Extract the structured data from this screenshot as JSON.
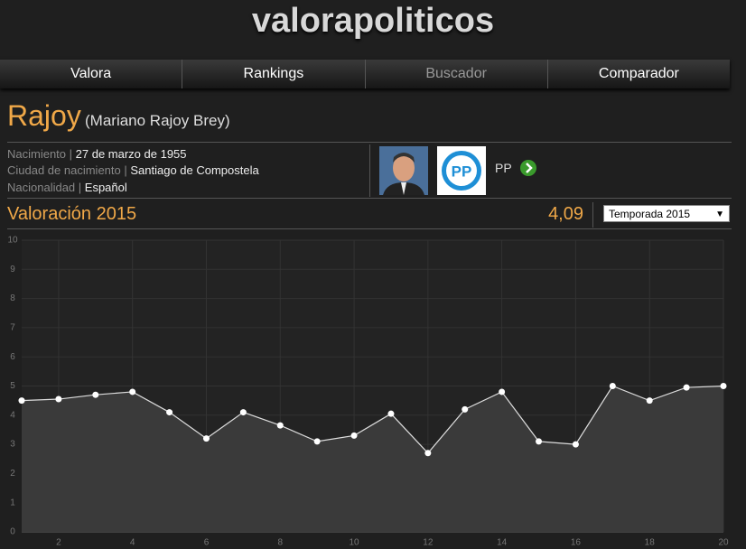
{
  "header": {
    "logo": "valorapoliticos"
  },
  "nav": {
    "items": [
      "Valora",
      "Rankings",
      "Buscador",
      "Comparador"
    ]
  },
  "profile": {
    "name": "Rajoy",
    "full_name": "(Mariano Rajoy Brey)",
    "facts": [
      {
        "label": "Nacimiento",
        "value": "27 de marzo de 1955"
      },
      {
        "label": "Ciudad de nacimiento",
        "value": "Santiago de Compostela"
      },
      {
        "label": "Nacionalidad",
        "value": "Español"
      }
    ],
    "party": "PP"
  },
  "rating": {
    "title": "Valoración 2015",
    "value": "4,09",
    "season": "Temporada 2015"
  },
  "chart_data": {
    "type": "line",
    "color": "#dddddd",
    "grid": true,
    "x": [
      1,
      2,
      3,
      4,
      5,
      6,
      7,
      8,
      9,
      10,
      11,
      12,
      13,
      14,
      15,
      16,
      17,
      18,
      19,
      20
    ],
    "values": [
      4.5,
      4.55,
      4.7,
      4.8,
      4.1,
      3.2,
      4.1,
      3.65,
      3.1,
      3.3,
      4.05,
      2.7,
      4.2,
      4.8,
      3.1,
      3.0,
      5.0,
      4.5,
      4.95,
      5.0
    ],
    "xlim": [
      1,
      20
    ],
    "xticks": [
      2,
      4,
      6,
      8,
      10,
      12,
      14,
      16,
      18,
      20
    ],
    "ylim": [
      0,
      10
    ],
    "yticks": [
      0,
      1,
      2,
      3,
      4,
      5,
      6,
      7,
      8,
      9,
      10
    ]
  }
}
